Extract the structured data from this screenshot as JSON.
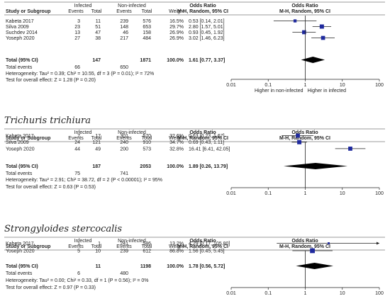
{
  "colors": {
    "square": "#1f2a9e",
    "diamond": "#000000",
    "rule": "#7a7a7a",
    "ink": "#222222",
    "fill": "#ffffff"
  },
  "headers": {
    "study": "Study or Subgroup",
    "group1": "Infected",
    "group2": "Non-infected",
    "events": "Events",
    "total": "Total",
    "weight": "Weight",
    "or_title": "Odds Ratio",
    "or_method": "M-H, Random, 95% CI"
  },
  "chart_data": [
    {
      "type": "forest",
      "title": "",
      "studies": [
        {
          "name": "Kabeta 2017",
          "e1": "3",
          "n1": "11",
          "e2": "239",
          "n2": "576",
          "weight": "16.5%",
          "ci_text": "0.53 [0.14, 2.01]",
          "or": 0.53,
          "lo": 0.14,
          "hi": 2.01
        },
        {
          "name": "Silva 2009",
          "e1": "23",
          "n1": "51",
          "e2": "148",
          "n2": "653",
          "weight": "29.7%",
          "ci_text": "2.80 [1.57, 5.01]",
          "or": 2.8,
          "lo": 1.57,
          "hi": 5.01
        },
        {
          "name": "Suchdev 2014",
          "e1": "13",
          "n1": "47",
          "e2": "46",
          "n2": "158",
          "weight": "26.9%",
          "ci_text": "0.93 [0.45, 1.92]",
          "or": 0.93,
          "lo": 0.45,
          "hi": 1.92
        },
        {
          "name": "Yoseph 2020",
          "e1": "27",
          "n1": "38",
          "e2": "217",
          "n2": "484",
          "weight": "26.9%",
          "ci_text": "3.02 [1.46, 6.23]",
          "or": 3.02,
          "lo": 1.46,
          "hi": 6.23
        }
      ],
      "total": {
        "label": "Total (95% CI)",
        "n1": "147",
        "n2": "1871",
        "weight": "100.0%",
        "ci_text": "1.61 [0.77, 3.37]",
        "or": 1.61,
        "lo": 0.77,
        "hi": 3.37
      },
      "total_events": {
        "label": "Total events",
        "e1": "66",
        "e2": "650"
      },
      "heterogeneity": "Heterogeneity: Tau² = 0.39; Chi² = 10.55, df = 3 (P = 0.01); I² = 72%",
      "overall_test": "Test for overall effect: Z = 1.28 (P = 0.20)",
      "x_scale": "log",
      "xlim": [
        0.01,
        100
      ],
      "ticks": [
        "0.01",
        "0.1",
        "1",
        "10",
        "100"
      ],
      "favours_left": "Higher in non-infected",
      "favours_right": "Higher in infected"
    },
    {
      "type": "forest",
      "title": "Trichuris trichiura",
      "studies": [
        {
          "name": "Kabeta 2017",
          "e1": "7",
          "n1": "17",
          "e2": "301",
          "n2": "570",
          "weight": "32.6%",
          "ci_text": "0.63 [0.23, 1.67]",
          "or": 0.63,
          "lo": 0.23,
          "hi": 1.67
        },
        {
          "name": "Silva 2009",
          "e1": "24",
          "n1": "121",
          "e2": "240",
          "n2": "910",
          "weight": "34.7%",
          "ci_text": "0.69 [0.43, 1.11]",
          "or": 0.69,
          "lo": 0.43,
          "hi": 1.11
        },
        {
          "name": "Yoseph 2020",
          "e1": "44",
          "n1": "49",
          "e2": "200",
          "n2": "573",
          "weight": "32.8%",
          "ci_text": "16.41 [6.41, 42.05]",
          "or": 16.41,
          "lo": 6.41,
          "hi": 42.05
        }
      ],
      "total": {
        "label": "Total (95% CI)",
        "n1": "187",
        "n2": "2053",
        "weight": "100.0%",
        "ci_text": "1.89 [0.26, 13.79]",
        "or": 1.89,
        "lo": 0.26,
        "hi": 13.79
      },
      "total_events": {
        "label": "Total events",
        "e1": "75",
        "e2": "741"
      },
      "heterogeneity": "Heterogeneity: Tau² = 2.91; Chi² = 38.72, df = 2 (P < 0.00001); I² = 95%",
      "overall_test": "Test for overall effect: Z = 0.63 (P = 0.53)",
      "x_scale": "log",
      "xlim": [
        0.01,
        100
      ],
      "ticks": [
        "0.01",
        "0.1",
        "1",
        "10",
        "100"
      ],
      "favours_left": "",
      "favours_right": ""
    },
    {
      "type": "forest",
      "title": "Strongyloides stercocalis",
      "studies": [
        {
          "name": "Kabeta 2017",
          "e1": "1",
          "n1": "1",
          "e2": "241",
          "n2": "586",
          "weight": "13.2%",
          "ci_text": "4.29 [0.17, 105.80]",
          "or": 4.29,
          "lo": 0.17,
          "hi": 105.8
        },
        {
          "name": "Yoseph 2020",
          "e1": "5",
          "n1": "10",
          "e2": "239",
          "n2": "612",
          "weight": "86.8%",
          "ci_text": "1.56 [0.45, 5.45]",
          "or": 1.56,
          "lo": 0.45,
          "hi": 5.45
        }
      ],
      "total": {
        "label": "Total (95% CI)",
        "n1": "11",
        "n2": "1198",
        "weight": "100.0%",
        "ci_text": "1.78 [0.56, 5.72]",
        "or": 1.78,
        "lo": 0.56,
        "hi": 5.72
      },
      "total_events": {
        "label": "Total events",
        "e1": "6",
        "e2": "480"
      },
      "heterogeneity": "Heterogeneity: Tau² = 0.00; Chi² = 0.33, df = 1 (P = 0.56); I² = 0%",
      "overall_test": "Test for overall effect: Z = 0.97 (P = 0.33)",
      "x_scale": "log",
      "xlim": [
        0.01,
        100
      ],
      "ticks": [
        "0.01",
        "0.1",
        "1",
        "10",
        "100"
      ],
      "favours_left": "",
      "favours_right": ""
    }
  ]
}
